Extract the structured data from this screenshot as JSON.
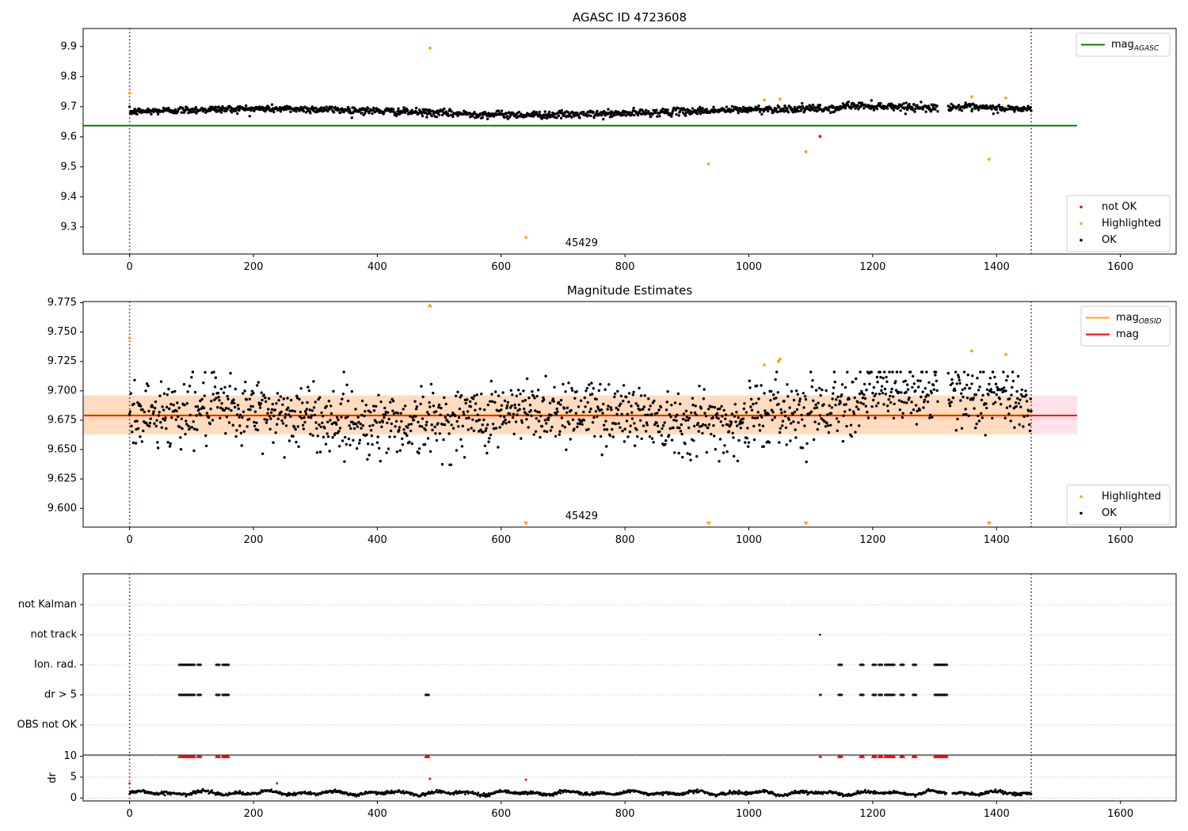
{
  "figure": {
    "title": "AGASC ID 4723608"
  },
  "chart_data": [
    {
      "panel": "agasc-magnitude",
      "type": "scatter",
      "title": "AGASC ID 4723608",
      "xlim": [
        -75,
        1690
      ],
      "ylim": [
        9.21,
        9.96
      ],
      "xticks": [
        0,
        200,
        400,
        600,
        800,
        1000,
        1200,
        1400,
        1600
      ],
      "yticks": [
        9.3,
        9.4,
        9.5,
        9.6,
        9.7,
        9.8,
        9.9
      ],
      "ytick_decimals": 1,
      "vlines": [
        0,
        1456
      ],
      "obsid_label": {
        "text": "45429",
        "x": 730
      },
      "reference_line": {
        "name": "mag_AGASC",
        "value": 9.637,
        "x_range": [
          -75,
          1530
        ],
        "color": "#008000"
      },
      "series": [
        {
          "name": "OK",
          "color": "#000000",
          "mean": 9.683,
          "noise": 0.011
        },
        {
          "name": "Highlighted",
          "color": "#ffa500",
          "points": [
            [
              0,
              9.745
            ],
            [
              485,
              9.895
            ],
            [
              640,
              9.265
            ],
            [
              935,
              9.51
            ],
            [
              1025,
              9.722
            ],
            [
              1050,
              9.725
            ],
            [
              1092,
              9.55
            ],
            [
              1360,
              9.733
            ],
            [
              1388,
              9.525
            ],
            [
              1415,
              9.729
            ]
          ]
        },
        {
          "name": "not OK",
          "color": "#ff0000",
          "points": [
            [
              1115,
              9.601
            ]
          ]
        }
      ],
      "legends": [
        {
          "position": "upper-right",
          "entries": [
            {
              "label": "mag",
              "sub": "AGASC",
              "kind": "line",
              "color": "#008000"
            }
          ]
        },
        {
          "position": "lower-right",
          "entries": [
            {
              "label": "not OK",
              "kind": "dot",
              "color": "#ff0000"
            },
            {
              "label": "Highlighted",
              "kind": "dot",
              "color": "#ffa500"
            },
            {
              "label": "OK",
              "kind": "dot",
              "color": "#000000"
            }
          ]
        }
      ]
    },
    {
      "panel": "magnitude-estimates",
      "type": "scatter",
      "title": "Magnitude Estimates",
      "xlim": [
        -75,
        1690
      ],
      "ylim": [
        9.584,
        9.776
      ],
      "xticks": [
        0,
        200,
        400,
        600,
        800,
        1000,
        1200,
        1400,
        1600
      ],
      "yticks": [
        9.6,
        9.625,
        9.65,
        9.675,
        9.7,
        9.725,
        9.75,
        9.775
      ],
      "ytick_decimals": 3,
      "vlines": [
        0,
        1456
      ],
      "obsid_label": {
        "text": "45429",
        "x": 730
      },
      "mag_line": {
        "name": "mag",
        "value": 9.679,
        "color": "#ff0000"
      },
      "band": {
        "low": 9.663,
        "high": 9.696,
        "x_range": [
          -75,
          1530
        ],
        "outer_color": "#ffc0cb",
        "inner_color": "#ffdab9",
        "inner_x_range": [
          -75,
          1456
        ]
      },
      "mag_obsid": {
        "name": "mag_OBSID",
        "color": "#ffa500"
      },
      "series": [
        {
          "name": "OK",
          "color": "#000000",
          "mean": 9.678,
          "noise": 0.014
        },
        {
          "name": "Highlighted",
          "color": "#ffa500",
          "points": [
            [
              0,
              9.745
            ],
            [
              1025,
              9.722
            ],
            [
              1048,
              9.725
            ],
            [
              1050,
              9.727
            ],
            [
              1360,
              9.734
            ],
            [
              1415,
              9.731
            ]
          ]
        },
        {
          "name": "Highlighted (off-scale)",
          "color": "#ffa500",
          "markers": "triangles",
          "up": [
            485
          ],
          "down": [
            640,
            935,
            1092,
            1388
          ]
        }
      ],
      "legends": [
        {
          "position": "upper-right",
          "entries": [
            {
              "label": "mag",
              "sub": "OBSID",
              "kind": "line",
              "color": "#ffa500"
            },
            {
              "label": "mag",
              "kind": "line",
              "color": "#ff0000"
            }
          ]
        },
        {
          "position": "lower-right",
          "entries": [
            {
              "label": "Highlighted",
              "kind": "dot",
              "color": "#ffa500"
            },
            {
              "label": "OK",
              "kind": "dot",
              "color": "#000000"
            }
          ]
        }
      ]
    },
    {
      "panel": "flags",
      "type": "scatter",
      "xlim": [
        -75,
        1690
      ],
      "vlines": [
        0,
        1456
      ],
      "categories": [
        "not Kalman",
        "not track",
        "Ion. rad.",
        "dr > 5",
        "OBS not OK"
      ],
      "flags": {
        "not Kalman": [],
        "not track": [
          1115
        ],
        "Ion. rad.": [
          [
            80,
            105
          ],
          [
            110,
            115
          ],
          [
            140,
            145
          ],
          [
            150,
            160
          ],
          [
            1145,
            1150
          ],
          [
            1180,
            1185
          ],
          [
            1200,
            1205
          ],
          [
            1210,
            1215
          ],
          [
            1220,
            1235
          ],
          [
            1245,
            1250
          ],
          [
            1265,
            1270
          ],
          [
            1300,
            1320
          ]
        ],
        "dr > 5": [
          [
            80,
            105
          ],
          [
            110,
            115
          ],
          [
            140,
            145
          ],
          [
            150,
            160
          ],
          [
            478,
            483
          ],
          [
            1115,
            1116
          ],
          [
            1145,
            1150
          ],
          [
            1180,
            1185
          ],
          [
            1200,
            1205
          ],
          [
            1210,
            1215
          ],
          [
            1220,
            1235
          ],
          [
            1245,
            1250
          ],
          [
            1265,
            1270
          ],
          [
            1300,
            1320
          ]
        ],
        "OBS not OK": []
      }
    },
    {
      "panel": "dr",
      "type": "scatter",
      "ylabel": "dr",
      "xlim": [
        -75,
        1690
      ],
      "ylim": [
        -0.7,
        10.3
      ],
      "xticks": [
        0,
        200,
        400,
        600,
        800,
        1000,
        1200,
        1400,
        1600
      ],
      "yticks": [
        0,
        5,
        10
      ],
      "vlines": [
        0,
        1456
      ],
      "clip_value": 10,
      "gap_x": [
        1320,
        1328
      ],
      "series": [
        {
          "name": "dr",
          "color": "#000000",
          "mean": 1.2,
          "noise": 0.45
        },
        {
          "name": "clipped",
          "color": "#ff0000",
          "markers": "triangles",
          "ranges": [
            [
              80,
              105
            ],
            [
              110,
              115
            ],
            [
              140,
              145
            ],
            [
              150,
              160
            ],
            [
              478,
              483
            ],
            [
              1115,
              1116
            ],
            [
              1145,
              1150
            ],
            [
              1180,
              1185
            ],
            [
              1200,
              1205
            ],
            [
              1210,
              1215
            ],
            [
              1220,
              1235
            ],
            [
              1245,
              1250
            ],
            [
              1265,
              1270
            ],
            [
              1300,
              1320
            ]
          ]
        },
        {
          "name": "outliers",
          "color": "#ff0000",
          "points": [
            [
              0,
              3.5
            ],
            [
              238,
              3.5
            ],
            [
              485,
              4.6
            ],
            [
              640,
              4.4
            ]
          ]
        }
      ]
    }
  ]
}
